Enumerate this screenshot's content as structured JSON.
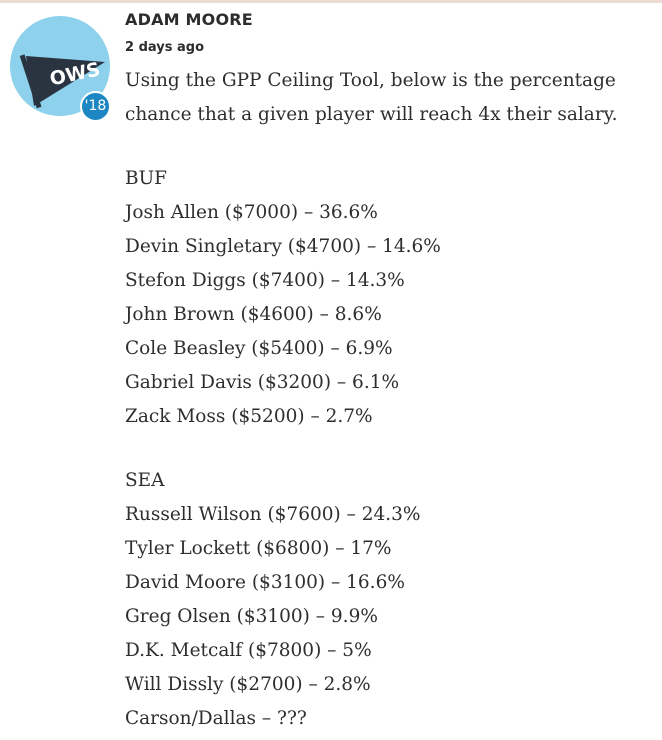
{
  "comment": {
    "author": "ADAM MOORE",
    "timestamp": "2 days ago",
    "avatar": {
      "icon": "pennant-icon",
      "pennant_text": "OWS",
      "year_badge": "'18",
      "colors": {
        "background": "#8ed1ec",
        "pennant": "#2a3441",
        "badge": "#1d87c4"
      }
    },
    "intro": [
      "Using the GPP Ceiling Tool, below is the percentage",
      "chance that a given player will reach 4x their salary."
    ],
    "teams": [
      {
        "team": "BUF",
        "players": [
          "Josh Allen ($7000) – 36.6%",
          "Devin Singletary ($4700) – 14.6%",
          "Stefon Diggs ($7400) – 14.3%",
          "John Brown ($4600) – 8.6%",
          "Cole Beasley ($5400) – 6.9%",
          "Gabriel Davis ($3200) – 6.1%",
          "Zack Moss ($5200) – 2.7%"
        ]
      },
      {
        "team": "SEA",
        "players": [
          "Russell Wilson ($7600) – 24.3%",
          "Tyler Lockett ($6800) – 17%",
          "David Moore ($3100) – 16.6%",
          "Greg Olsen ($3100) – 9.9%",
          "D.K. Metcalf ($7800) – 5%",
          "Will Dissly ($2700) – 2.8%",
          "Carson/Dallas – ???"
        ]
      }
    ]
  }
}
